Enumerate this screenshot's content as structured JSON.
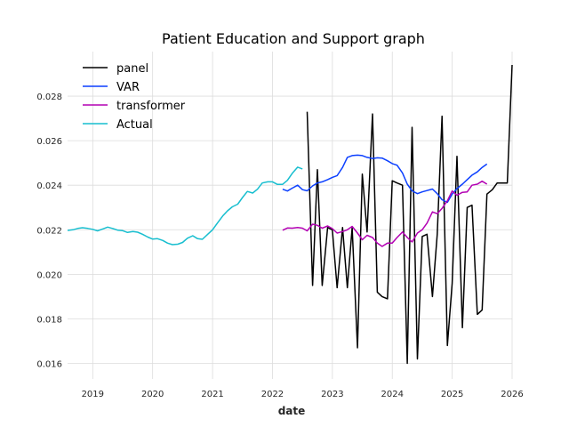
{
  "chart_data": {
    "type": "line",
    "title": "Patient Education and Support graph",
    "xlabel": "date",
    "ylabel": "",
    "xlim": [
      2018.58,
      2026.0
    ],
    "ylim": [
      0.0153,
      0.03
    ],
    "xticks": [
      2019,
      2020,
      2021,
      2022,
      2023,
      2024,
      2025,
      2026
    ],
    "xtick_labels": [
      "2019",
      "2020",
      "2021",
      "2022",
      "2023",
      "2024",
      "2025",
      "2026"
    ],
    "yticks": [
      0.016,
      0.018,
      0.02,
      0.022,
      0.024,
      0.026,
      0.028
    ],
    "ytick_labels": [
      "0.016",
      "0.018",
      "0.020",
      "0.022",
      "0.024",
      "0.026",
      "0.028"
    ],
    "grid": true,
    "legend_position": "top-left",
    "series": [
      {
        "name": "panel",
        "color": "#000000",
        "x": [
          2022.58,
          2022.67,
          2022.75,
          2022.83,
          2022.92,
          2023.0,
          2023.08,
          2023.17,
          2023.25,
          2023.33,
          2023.42,
          2023.5,
          2023.58,
          2023.67,
          2023.75,
          2023.83,
          2023.92,
          2024.0,
          2024.08,
          2024.17,
          2024.25,
          2024.33,
          2024.42,
          2024.5,
          2024.58,
          2024.67,
          2024.75,
          2024.83,
          2024.92,
          2025.0,
          2025.08,
          2025.17,
          2025.25,
          2025.33,
          2025.42,
          2025.5,
          2025.58,
          2025.67,
          2025.75,
          2025.83,
          2025.92,
          2026.0
        ],
        "y": [
          0.0273,
          0.0195,
          0.0247,
          0.0195,
          0.0221,
          0.022,
          0.0194,
          0.0221,
          0.0194,
          0.0221,
          0.0167,
          0.0245,
          0.0219,
          0.0272,
          0.0192,
          0.019,
          0.0189,
          0.0242,
          0.0241,
          0.024,
          0.016,
          0.0266,
          0.0162,
          0.0217,
          0.0218,
          0.019,
          0.0218,
          0.0271,
          0.0168,
          0.0196,
          0.0253,
          0.0176,
          0.023,
          0.0231,
          0.0182,
          0.0184,
          0.0236,
          0.0238,
          0.0241,
          0.0241,
          0.0241,
          0.0294
        ]
      },
      {
        "name": "VAR",
        "color": "#0b3fff",
        "x": [
          2022.17,
          2022.25,
          2022.33,
          2022.42,
          2022.5,
          2022.58,
          2022.67,
          2022.75,
          2022.83,
          2022.92,
          2023.0,
          2023.08,
          2023.17,
          2023.25,
          2023.33,
          2023.42,
          2023.5,
          2023.58,
          2023.67,
          2023.75,
          2023.83,
          2023.92,
          2024.0,
          2024.08,
          2024.17,
          2024.25,
          2024.33,
          2024.42,
          2024.5,
          2024.58,
          2024.67,
          2024.75,
          2024.83,
          2024.92,
          2025.0,
          2025.08,
          2025.17,
          2025.25,
          2025.33,
          2025.42,
          2025.5,
          2025.58
        ],
        "y": [
          0.02382,
          0.02374,
          0.02387,
          0.024,
          0.0238,
          0.02375,
          0.02397,
          0.0241,
          0.02415,
          0.02425,
          0.02435,
          0.02443,
          0.0248,
          0.02525,
          0.02533,
          0.02535,
          0.02533,
          0.02525,
          0.0252,
          0.02523,
          0.02522,
          0.0251,
          0.02497,
          0.0249,
          0.02455,
          0.02405,
          0.02375,
          0.02362,
          0.0237,
          0.02376,
          0.02383,
          0.02362,
          0.02335,
          0.02323,
          0.0236,
          0.02385,
          0.02405,
          0.02425,
          0.02445,
          0.0246,
          0.0248,
          0.02495
        ]
      },
      {
        "name": "transformer",
        "color": "#b300b3",
        "x": [
          2022.17,
          2022.25,
          2022.33,
          2022.42,
          2022.5,
          2022.58,
          2022.67,
          2022.75,
          2022.83,
          2022.92,
          2023.0,
          2023.08,
          2023.17,
          2023.25,
          2023.33,
          2023.42,
          2023.5,
          2023.58,
          2023.67,
          2023.75,
          2023.83,
          2023.92,
          2024.0,
          2024.08,
          2024.17,
          2024.25,
          2024.33,
          2024.42,
          2024.5,
          2024.58,
          2024.67,
          2024.75,
          2024.83,
          2024.92,
          2025.0,
          2025.08,
          2025.17,
          2025.25,
          2025.33,
          2025.42,
          2025.5,
          2025.58
        ],
        "y": [
          0.02198,
          0.02208,
          0.02207,
          0.0221,
          0.02207,
          0.02195,
          0.02225,
          0.0222,
          0.02207,
          0.02217,
          0.02205,
          0.02185,
          0.02192,
          0.022,
          0.02215,
          0.02185,
          0.02155,
          0.02175,
          0.02165,
          0.0214,
          0.02125,
          0.0214,
          0.0214,
          0.02165,
          0.0219,
          0.02165,
          0.02145,
          0.02185,
          0.022,
          0.0223,
          0.0228,
          0.02272,
          0.02296,
          0.0233,
          0.02374,
          0.02355,
          0.02368,
          0.0237,
          0.024,
          0.02405,
          0.02418,
          0.02405
        ]
      },
      {
        "name": "Actual",
        "color": "#17becf",
        "x": [
          2018.58,
          2018.67,
          2018.75,
          2018.83,
          2018.92,
          2019.0,
          2019.08,
          2019.17,
          2019.25,
          2019.33,
          2019.42,
          2019.5,
          2019.58,
          2019.67,
          2019.75,
          2019.83,
          2019.92,
          2020.0,
          2020.08,
          2020.17,
          2020.25,
          2020.33,
          2020.42,
          2020.5,
          2020.58,
          2020.67,
          2020.75,
          2020.83,
          2020.92,
          2021.0,
          2021.08,
          2021.17,
          2021.25,
          2021.33,
          2021.42,
          2021.5,
          2021.58,
          2021.67,
          2021.75,
          2021.83,
          2021.92,
          2022.0,
          2022.08,
          2022.17,
          2022.25,
          2022.33,
          2022.42,
          2022.5
        ],
        "y": [
          0.02197,
          0.022,
          0.02206,
          0.02209,
          0.02206,
          0.02202,
          0.02195,
          0.02204,
          0.02212,
          0.02206,
          0.02198,
          0.02196,
          0.02188,
          0.02192,
          0.02189,
          0.0218,
          0.02167,
          0.02158,
          0.0216,
          0.02152,
          0.0214,
          0.02133,
          0.02135,
          0.02143,
          0.02162,
          0.02173,
          0.0216,
          0.02157,
          0.0218,
          0.022,
          0.0223,
          0.02262,
          0.02285,
          0.02303,
          0.02315,
          0.02345,
          0.02372,
          0.02365,
          0.02382,
          0.0241,
          0.02415,
          0.02415,
          0.02404,
          0.02404,
          0.02422,
          0.02453,
          0.02481,
          0.02473
        ]
      }
    ]
  }
}
